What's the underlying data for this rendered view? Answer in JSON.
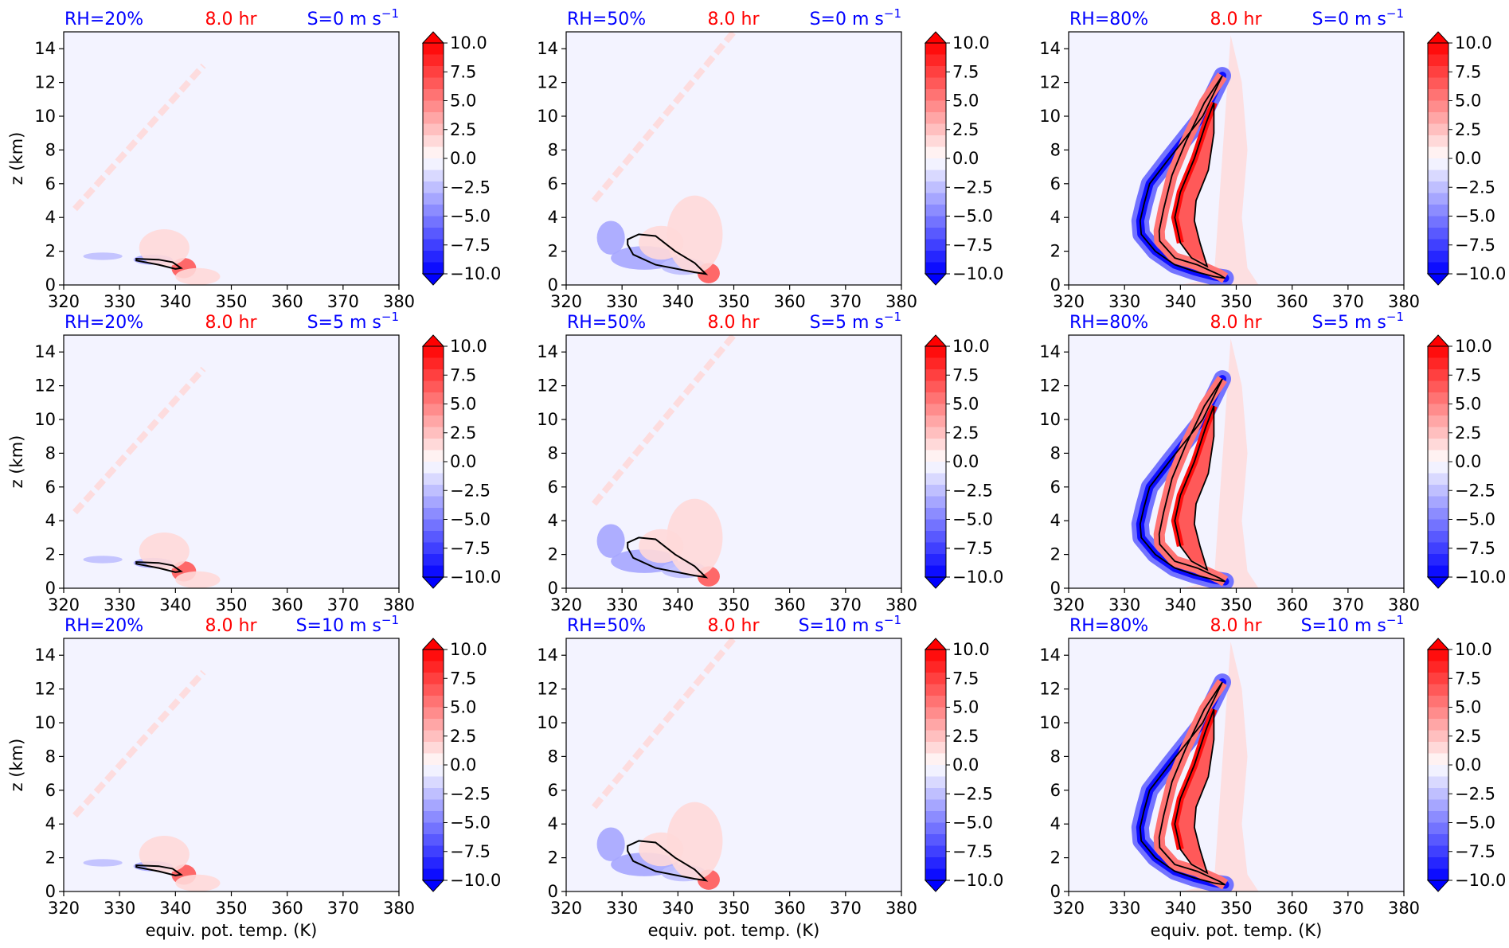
{
  "chart_data": {
    "type": "contourf",
    "rows": [
      {
        "shear_label": "S=0 m s",
        "shear_value": 0
      },
      {
        "shear_label": "S=5 m s",
        "shear_value": 5
      },
      {
        "shear_label": "S=10 m s",
        "shear_value": 10
      }
    ],
    "columns": [
      {
        "rh_label": "RH=20%",
        "rh": 20
      },
      {
        "rh_label": "RH=50%",
        "rh": 50
      },
      {
        "rh_label": "RH=80%",
        "rh": 80
      }
    ],
    "time_label": "8.0 hr",
    "unit_superscript": "−1",
    "xlabel": "equiv. pot. temp. (K)",
    "ylabel": "z (km)",
    "xlim": [
      320,
      380
    ],
    "ylim": [
      0,
      15
    ],
    "xticks": [
      "320",
      "330",
      "340",
      "350",
      "360",
      "370",
      "380"
    ],
    "yticks": [
      "0",
      "2",
      "4",
      "6",
      "8",
      "10",
      "12",
      "14"
    ],
    "colorbar": {
      "range": [
        -10,
        10
      ],
      "levels": 20,
      "ticks": [
        "−10.0",
        "−7.5",
        "−5.0",
        "−2.5",
        "0.0",
        "2.5",
        "5.0",
        "7.5",
        "10.0"
      ],
      "extend": "both",
      "cmap": "bwr"
    },
    "colors": {
      "negative": "#0000ff",
      "positive": "#ff0000",
      "label_rh": "#0000ff",
      "label_time": "#ff0000",
      "label_shear": "#0000ff",
      "contour_line": "#000000"
    },
    "fields": {
      "20": {
        "blobs": [
          {
            "x": 327,
            "y": 1.7,
            "rx": 3.5,
            "ry": 0.22,
            "v": -2.2
          },
          {
            "x": 336,
            "y": 1.5,
            "rx": 3.5,
            "ry": 0.3,
            "v": -4
          },
          {
            "x": 341.5,
            "y": 1.0,
            "rx": 2.2,
            "ry": 0.6,
            "v": 6
          },
          {
            "x": 338,
            "y": 2.2,
            "rx": 4.5,
            "ry": 1.1,
            "v": 1.3
          },
          {
            "x": 344,
            "y": 0.5,
            "rx": 4,
            "ry": 0.5,
            "v": 1.0
          }
        ],
        "streak": {
          "x0": 322,
          "y0": 4.5,
          "x1": 345,
          "y1": 13,
          "v": 0.9
        },
        "contours": [
          [
            [
              333,
              1.55
            ],
            [
              337,
              1.5
            ],
            [
              339.5,
              1.35
            ],
            [
              341,
              1.0
            ],
            [
              340,
              0.95
            ],
            [
              337,
              1.2
            ],
            [
              333,
              1.45
            ]
          ]
        ]
      },
      "50": {
        "blobs": [
          {
            "x": 328,
            "y": 2.8,
            "rx": 2.5,
            "ry": 1.0,
            "v": -4
          },
          {
            "x": 334,
            "y": 1.6,
            "rx": 6,
            "ry": 0.7,
            "v": -3.5
          },
          {
            "x": 341,
            "y": 1.1,
            "rx": 4,
            "ry": 0.5,
            "v": -2.5
          },
          {
            "x": 345.5,
            "y": 0.7,
            "rx": 2,
            "ry": 0.6,
            "v": 6
          },
          {
            "x": 343,
            "y": 3.0,
            "rx": 5,
            "ry": 2.3,
            "v": 1.6
          },
          {
            "x": 337,
            "y": 2.5,
            "rx": 4,
            "ry": 1.0,
            "v": 1.2
          }
        ],
        "streak": {
          "x0": 325,
          "y0": 5,
          "x1": 350,
          "y1": 15,
          "v": 0.9
        },
        "contours": [
          [
            [
              331,
              2.7
            ],
            [
              333,
              3.0
            ],
            [
              336,
              2.9
            ],
            [
              339.5,
              2.0
            ],
            [
              343,
              1.3
            ],
            [
              345,
              0.65
            ],
            [
              343,
              0.75
            ],
            [
              336,
              1.2
            ],
            [
              332,
              1.8
            ],
            [
              331,
              2.4
            ]
          ]
        ]
      },
      "80": {
        "contours": [
          [
            [
              347.5,
              12.4
            ],
            [
              344,
              10
            ],
            [
              338,
              7.5
            ],
            [
              334.5,
              6
            ],
            [
              333.5,
              4.8
            ],
            [
              332.8,
              3.8
            ],
            [
              333,
              3.0
            ],
            [
              335.5,
              2.0
            ],
            [
              339,
              1.2
            ],
            [
              342.5,
              0.8
            ],
            [
              346,
              0.5
            ],
            [
              348,
              0.4
            ],
            [
              347,
              0.6
            ],
            [
              343,
              1.2
            ],
            [
              339,
              1.6
            ],
            [
              336.3,
              2.6
            ],
            [
              336.2,
              3.2
            ],
            [
              337,
              4.5
            ],
            [
              338.5,
              6.5
            ],
            [
              341,
              8.5
            ],
            [
              344.3,
              10.8
            ],
            [
              347.5,
              12.4
            ]
          ],
          [
            [
              346,
              10.8
            ],
            [
              344.5,
              9.5
            ],
            [
              342.5,
              7.5
            ],
            [
              340,
              5.5
            ],
            [
              339,
              4.0
            ],
            [
              340,
              2.5
            ],
            [
              342,
              1.6
            ],
            [
              344.8,
              1.1
            ],
            [
              343.5,
              2.5
            ],
            [
              342.5,
              3.8
            ],
            [
              342.8,
              5.0
            ],
            [
              345,
              6.8
            ],
            [
              346,
              9.0
            ],
            [
              346,
              10.8
            ]
          ]
        ]
      }
    }
  }
}
